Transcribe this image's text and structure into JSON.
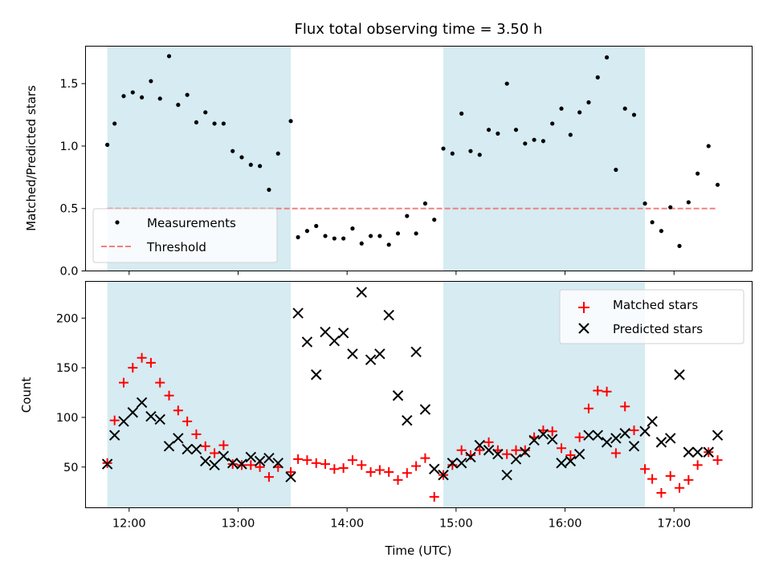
{
  "chart_data": [
    {
      "type": "scatter",
      "title": "Flux total observing time = 3.50 h",
      "xlabel": "",
      "ylabel": "Matched/Predicted stars",
      "ylim": [
        0,
        1.8
      ],
      "yticks": [
        "0.0",
        "0.5",
        "1.0",
        "1.5"
      ],
      "xlim": [
        "11:36",
        "17:43"
      ],
      "x_format": "HH:MM (UTC)",
      "legend": {
        "placement": "lower-left",
        "entries": [
          "Measurements",
          "Threshold"
        ]
      },
      "shaded_intervals": [
        [
          "11:48",
          "13:29"
        ],
        [
          "14:53",
          "16:44"
        ]
      ],
      "threshold": {
        "name": "Threshold",
        "value": 0.5,
        "x_range": [
          "11:48",
          "17:24"
        ],
        "color": "#f08080",
        "style": "dashed"
      },
      "series": [
        {
          "name": "Measurements",
          "color": "#000000",
          "marker": "dot",
          "points": [
            [
              "11:48",
              1.01
            ],
            [
              "11:52",
              1.18
            ],
            [
              "11:57",
              1.4
            ],
            [
              "12:02",
              1.43
            ],
            [
              "12:07",
              1.39
            ],
            [
              "12:12",
              1.52
            ],
            [
              "12:17",
              1.38
            ],
            [
              "12:22",
              1.72
            ],
            [
              "12:27",
              1.33
            ],
            [
              "12:32",
              1.41
            ],
            [
              "12:37",
              1.19
            ],
            [
              "12:42",
              1.27
            ],
            [
              "12:47",
              1.18
            ],
            [
              "12:52",
              1.18
            ],
            [
              "12:57",
              0.96
            ],
            [
              "13:02",
              0.91
            ],
            [
              "13:07",
              0.85
            ],
            [
              "13:12",
              0.84
            ],
            [
              "13:17",
              0.65
            ],
            [
              "13:22",
              0.94
            ],
            [
              "13:29",
              1.2
            ],
            [
              "13:33",
              0.27
            ],
            [
              "13:38",
              0.32
            ],
            [
              "13:43",
              0.36
            ],
            [
              "13:48",
              0.28
            ],
            [
              "13:53",
              0.26
            ],
            [
              "13:58",
              0.26
            ],
            [
              "14:03",
              0.34
            ],
            [
              "14:08",
              0.22
            ],
            [
              "14:13",
              0.28
            ],
            [
              "14:18",
              0.28
            ],
            [
              "14:23",
              0.21
            ],
            [
              "14:28",
              0.3
            ],
            [
              "14:33",
              0.44
            ],
            [
              "14:38",
              0.3
            ],
            [
              "14:43",
              0.54
            ],
            [
              "14:48",
              0.41
            ],
            [
              "14:53",
              0.98
            ],
            [
              "14:58",
              0.94
            ],
            [
              "15:03",
              1.26
            ],
            [
              "15:08",
              0.96
            ],
            [
              "15:13",
              0.93
            ],
            [
              "15:18",
              1.13
            ],
            [
              "15:23",
              1.1
            ],
            [
              "15:28",
              1.5
            ],
            [
              "15:33",
              1.13
            ],
            [
              "15:38",
              1.02
            ],
            [
              "15:43",
              1.05
            ],
            [
              "15:48",
              1.04
            ],
            [
              "15:53",
              1.18
            ],
            [
              "15:58",
              1.3
            ],
            [
              "16:03",
              1.09
            ],
            [
              "16:08",
              1.27
            ],
            [
              "16:13",
              1.35
            ],
            [
              "16:18",
              1.55
            ],
            [
              "16:23",
              1.71
            ],
            [
              "16:28",
              0.81
            ],
            [
              "16:33",
              1.3
            ],
            [
              "16:38",
              1.25
            ],
            [
              "16:44",
              0.54
            ],
            [
              "16:48",
              0.39
            ],
            [
              "16:53",
              0.32
            ],
            [
              "16:58",
              0.51
            ],
            [
              "17:03",
              0.2
            ],
            [
              "17:08",
              0.55
            ],
            [
              "17:13",
              0.78
            ],
            [
              "17:19",
              1.0
            ],
            [
              "17:24",
              0.69
            ]
          ]
        }
      ]
    },
    {
      "type": "scatter",
      "title": "",
      "xlabel": "Time (UTC)",
      "ylabel": "Count",
      "ylim": [
        9,
        237
      ],
      "yticks": [
        "50",
        "100",
        "150",
        "200"
      ],
      "xlim": [
        "11:36",
        "17:43"
      ],
      "xticks": [
        "12:00",
        "13:00",
        "14:00",
        "15:00",
        "16:00",
        "17:00"
      ],
      "legend": {
        "placement": "upper-right",
        "entries": [
          "Matched stars",
          "Predicted stars"
        ]
      },
      "shaded_intervals": [
        [
          "11:48",
          "13:29"
        ],
        [
          "14:53",
          "16:44"
        ]
      ],
      "series": [
        {
          "name": "Matched stars",
          "color": "#ff0000",
          "marker": "plus",
          "points": [
            [
              "11:48",
              54
            ],
            [
              "11:52",
              97
            ],
            [
              "11:57",
              135
            ],
            [
              "12:02",
              150
            ],
            [
              "12:07",
              160
            ],
            [
              "12:12",
              155
            ],
            [
              "12:17",
              135
            ],
            [
              "12:22",
              122
            ],
            [
              "12:27",
              107
            ],
            [
              "12:32",
              96
            ],
            [
              "12:37",
              83
            ],
            [
              "12:42",
              71
            ],
            [
              "12:47",
              64
            ],
            [
              "12:52",
              72
            ],
            [
              "12:57",
              53
            ],
            [
              "13:02",
              52
            ],
            [
              "13:07",
              52
            ],
            [
              "13:12",
              50
            ],
            [
              "13:17",
              40
            ],
            [
              "13:22",
              50
            ],
            [
              "13:29",
              45
            ],
            [
              "13:33",
              58
            ],
            [
              "13:38",
              57
            ],
            [
              "13:43",
              54
            ],
            [
              "13:48",
              53
            ],
            [
              "13:53",
              48
            ],
            [
              "13:58",
              49
            ],
            [
              "14:03",
              57
            ],
            [
              "14:08",
              52
            ],
            [
              "14:13",
              45
            ],
            [
              "14:18",
              47
            ],
            [
              "14:23",
              45
            ],
            [
              "14:28",
              37
            ],
            [
              "14:33",
              44
            ],
            [
              "14:38",
              51
            ],
            [
              "14:43",
              59
            ],
            [
              "14:48",
              20
            ],
            [
              "14:53",
              42
            ],
            [
              "14:58",
              52
            ],
            [
              "15:03",
              67
            ],
            [
              "15:08",
              62
            ],
            [
              "15:13",
              67
            ],
            [
              "15:18",
              75
            ],
            [
              "15:23",
              67
            ],
            [
              "15:28",
              63
            ],
            [
              "15:33",
              67
            ],
            [
              "15:38",
              67
            ],
            [
              "15:43",
              80
            ],
            [
              "15:48",
              87
            ],
            [
              "15:53",
              86
            ],
            [
              "15:58",
              69
            ],
            [
              "16:03",
              62
            ],
            [
              "16:08",
              80
            ],
            [
              "16:13",
              109
            ],
            [
              "16:18",
              127
            ],
            [
              "16:23",
              126
            ],
            [
              "16:28",
              64
            ],
            [
              "16:33",
              111
            ],
            [
              "16:38",
              87
            ],
            [
              "16:44",
              48
            ],
            [
              "16:48",
              38
            ],
            [
              "16:53",
              24
            ],
            [
              "16:58",
              41
            ],
            [
              "17:03",
              29
            ],
            [
              "17:08",
              37
            ],
            [
              "17:13",
              52
            ],
            [
              "17:19",
              65
            ],
            [
              "17:24",
              57
            ]
          ]
        },
        {
          "name": "Predicted stars",
          "color": "#000000",
          "marker": "x",
          "points": [
            [
              "11:48",
              53
            ],
            [
              "11:52",
              82
            ],
            [
              "11:57",
              96
            ],
            [
              "12:02",
              105
            ],
            [
              "12:07",
              115
            ],
            [
              "12:12",
              101
            ],
            [
              "12:17",
              98
            ],
            [
              "12:22",
              71
            ],
            [
              "12:27",
              79
            ],
            [
              "12:32",
              68
            ],
            [
              "12:37",
              68
            ],
            [
              "12:42",
              56
            ],
            [
              "12:47",
              52
            ],
            [
              "12:52",
              61
            ],
            [
              "12:57",
              54
            ],
            [
              "13:02",
              53
            ],
            [
              "13:07",
              60
            ],
            [
              "13:12",
              56
            ],
            [
              "13:17",
              59
            ],
            [
              "13:22",
              54
            ],
            [
              "13:29",
              40
            ],
            [
              "13:33",
              205
            ],
            [
              "13:38",
              176
            ],
            [
              "13:43",
              143
            ],
            [
              "13:48",
              186
            ],
            [
              "13:53",
              177
            ],
            [
              "13:58",
              185
            ],
            [
              "14:03",
              164
            ],
            [
              "14:08",
              226
            ],
            [
              "14:13",
              158
            ],
            [
              "14:18",
              164
            ],
            [
              "14:23",
              203
            ],
            [
              "14:28",
              122
            ],
            [
              "14:33",
              97
            ],
            [
              "14:38",
              166
            ],
            [
              "14:43",
              108
            ],
            [
              "14:48",
              48
            ],
            [
              "14:53",
              42
            ],
            [
              "14:58",
              54
            ],
            [
              "15:03",
              54
            ],
            [
              "15:08",
              60
            ],
            [
              "15:13",
              72
            ],
            [
              "15:18",
              67
            ],
            [
              "15:23",
              63
            ],
            [
              "15:28",
              42
            ],
            [
              "15:33",
              58
            ],
            [
              "15:38",
              65
            ],
            [
              "15:43",
              77
            ],
            [
              "15:48",
              83
            ],
            [
              "15:53",
              78
            ],
            [
              "15:58",
              54
            ],
            [
              "16:03",
              56
            ],
            [
              "16:08",
              63
            ],
            [
              "16:13",
              82
            ],
            [
              "16:18",
              82
            ],
            [
              "16:23",
              75
            ],
            [
              "16:28",
              79
            ],
            [
              "16:33",
              84
            ],
            [
              "16:38",
              71
            ],
            [
              "16:44",
              86
            ],
            [
              "16:48",
              96
            ],
            [
              "16:53",
              75
            ],
            [
              "16:58",
              79
            ],
            [
              "17:03",
              143
            ],
            [
              "17:08",
              65
            ],
            [
              "17:13",
              65
            ],
            [
              "17:19",
              65
            ],
            [
              "17:24",
              82
            ]
          ]
        }
      ]
    }
  ]
}
